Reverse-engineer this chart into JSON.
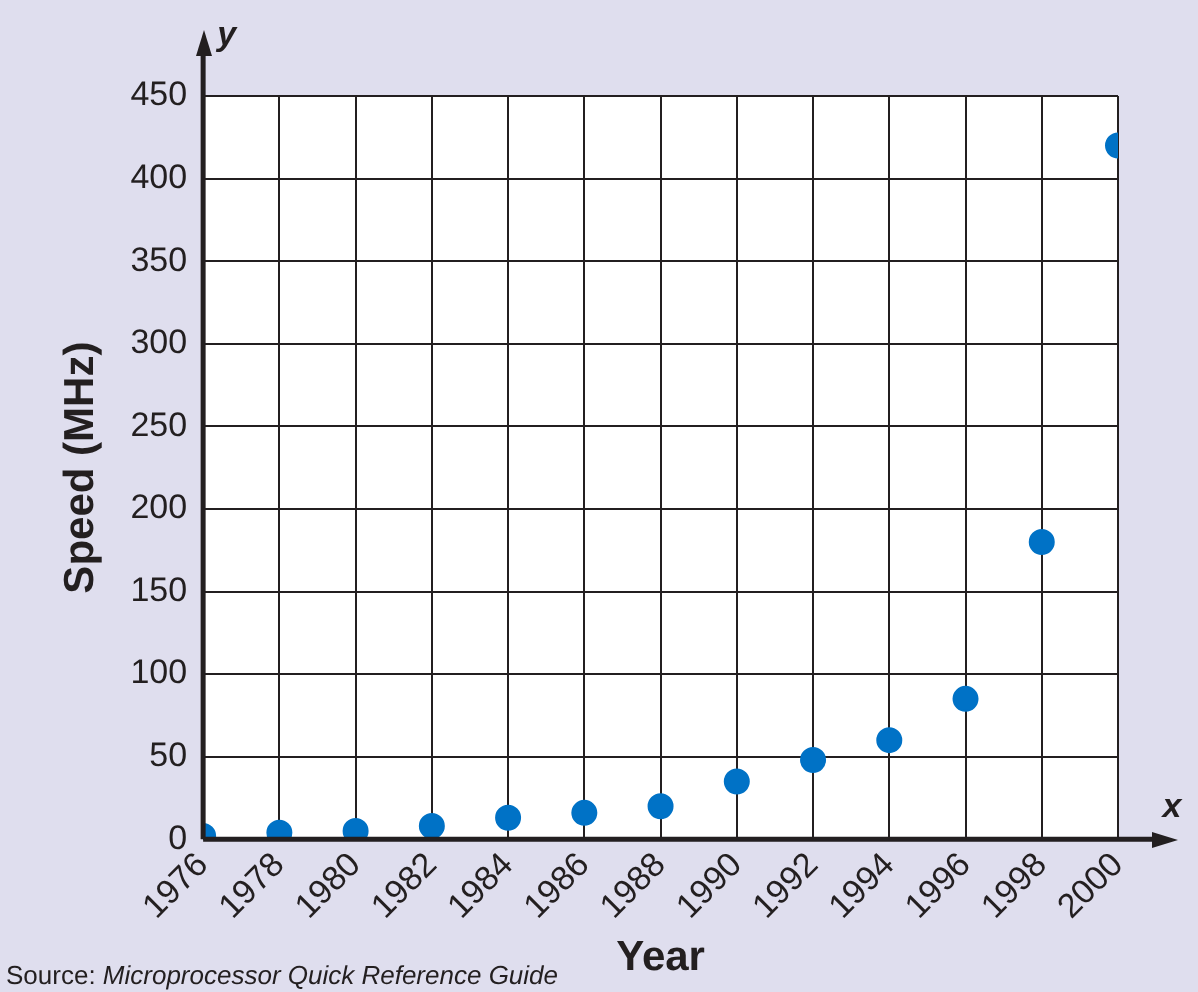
{
  "chart_data": {
    "type": "scatter",
    "xlabel": "Year",
    "ylabel": "Speed (MHz)",
    "x": [
      1976,
      1978,
      1980,
      1982,
      1984,
      1986,
      1988,
      1990,
      1992,
      1994,
      1996,
      1998,
      2000
    ],
    "values": [
      2,
      4,
      5,
      8,
      13,
      16,
      20,
      35,
      48,
      60,
      85,
      180,
      420
    ],
    "color": "#0072c6",
    "marker": "circle",
    "xlim": [
      1976,
      2000
    ],
    "xticks": [
      1976,
      1978,
      1980,
      1982,
      1984,
      1986,
      1988,
      1990,
      1992,
      1994,
      1996,
      1998,
      2000
    ],
    "ylim": [
      0,
      450
    ],
    "yticks": [
      0,
      50,
      100,
      150,
      200,
      250,
      300,
      350,
      400,
      450
    ],
    "grid": true,
    "legend": false,
    "annotations": [
      "y",
      "x",
      "Source: Microprocessor Quick Reference Guide"
    ]
  }
}
